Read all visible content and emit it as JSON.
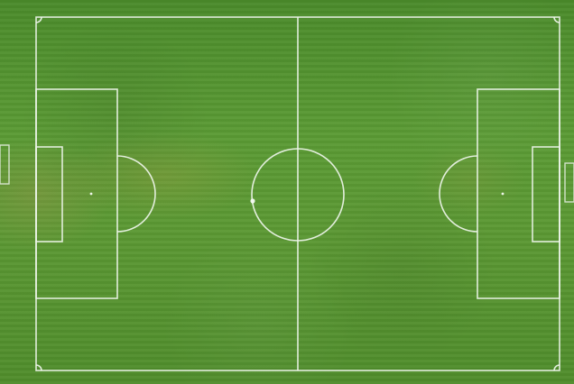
{
  "scene": {
    "subject": "soccer-pitch-aerial-view",
    "grass_color": "#5a9a34",
    "line_color": "#eef5ea"
  }
}
